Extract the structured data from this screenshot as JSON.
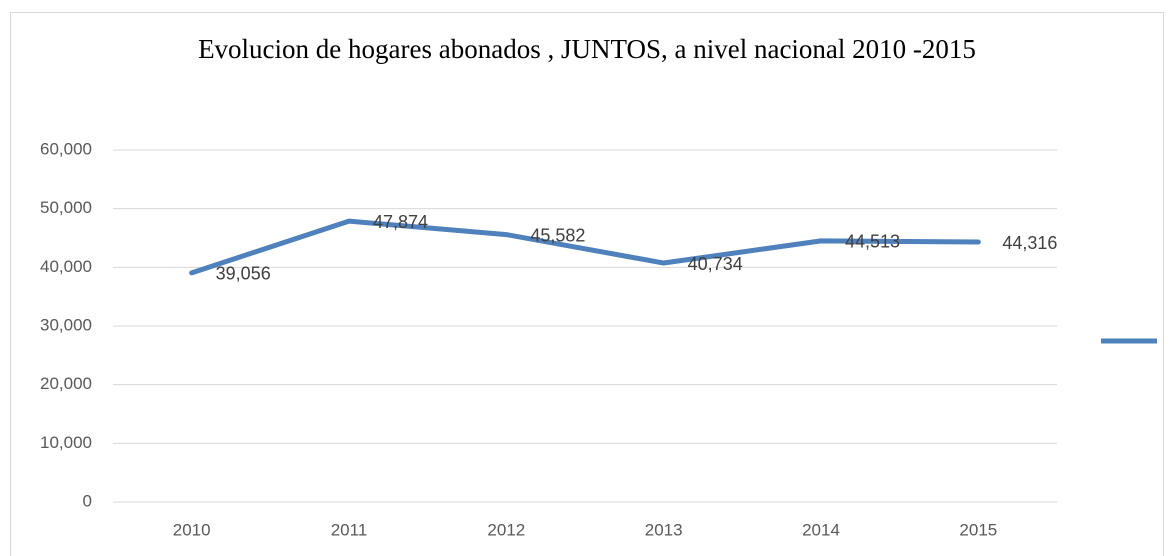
{
  "chart_data": {
    "type": "line",
    "title": "Evolucion de hogares abonados , JUNTOS, a nivel nacional 2010 -2015",
    "categories": [
      "2010",
      "2011",
      "2012",
      "2013",
      "2014",
      "2015"
    ],
    "values": [
      39056,
      47874,
      45582,
      40734,
      44513,
      44316
    ],
    "value_labels": [
      "39,056",
      "47,874",
      "45,582",
      "40,734",
      "44,513",
      "44,316"
    ],
    "color": "#4f81bd",
    "ylim": [
      0,
      60000
    ],
    "yticks": [
      0,
      {
        "value": 10000,
        "label": "10,000"
      },
      {
        "value": 20000,
        "label": "20,000"
      },
      {
        "value": 30000,
        "label": "30,000"
      },
      {
        "value": 40000,
        "label": "40,000"
      },
      {
        "value": 50000,
        "label": "50,000"
      },
      {
        "value": 60000,
        "label": "60,000"
      }
    ],
    "grid": true,
    "legend": "right"
  }
}
